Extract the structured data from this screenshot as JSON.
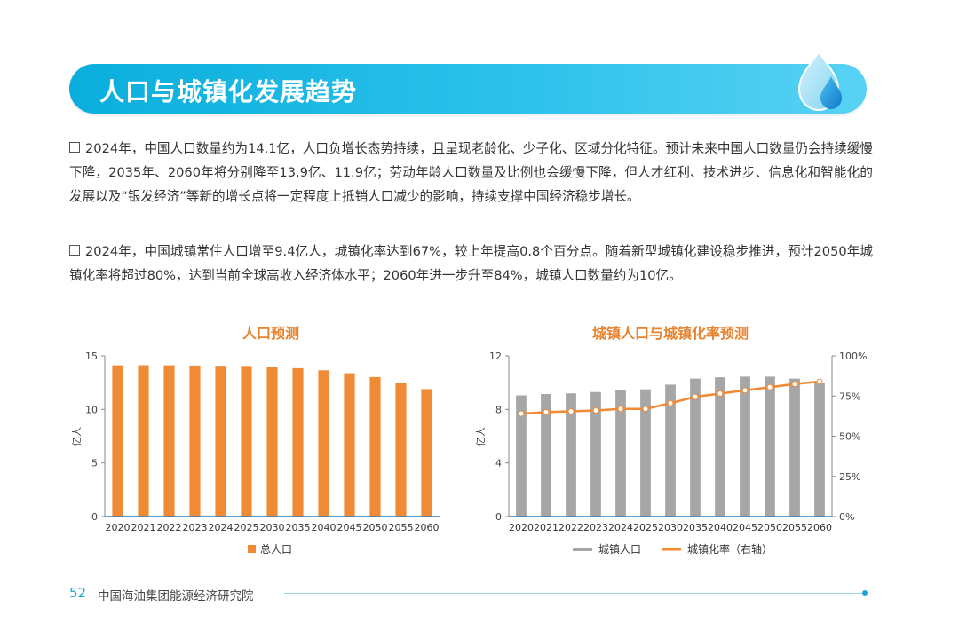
{
  "header": {
    "title": "人口与城镇化发展趋势"
  },
  "paragraphs": [
    "2024年，中国人口数量约为14.1亿，人口负增长态势持续，且呈现老龄化、少子化、区域分化特征。预计未来中国人口数量仍会持续缓慢下降，2035年、2060年将分别降至13.9亿、11.9亿；劳动年龄人口数量及比例也会缓慢下降，但人才红利、技术进步、信息化和智能化的发展以及“银发经济”等新的增长点将一定程度上抵销人口减少的影响，持续支撑中国经济稳步增长。",
    "2024年，中国城镇常住人口增至9.4亿人，城镇化率达到67%，较上年提高0.8个百分点。随着新型城镇化建设稳步推进，预计2050年城镇化率将超过80%，达到当前全球高收入经济体水平；2060年进一步升至84%，城镇人口数量约为10亿。"
  ],
  "colors": {
    "banner": "#1ab4e2",
    "orange": "#f08a35",
    "gray": "#a6a6a6",
    "axis_blue": "#2f7fc1"
  },
  "chart_data": [
    {
      "type": "bar",
      "title": "人口预测",
      "ylabel": "亿人",
      "ylim": [
        0,
        15
      ],
      "yticks": [
        "0",
        "5",
        "10",
        "15"
      ],
      "categories": [
        "2020",
        "2021",
        "2022",
        "2023",
        "2024",
        "2025",
        "2030",
        "2035",
        "2040",
        "2045",
        "2050",
        "2055",
        "2060"
      ],
      "series": [
        {
          "name": "总人口",
          "values": [
            14.12,
            14.13,
            14.12,
            14.1,
            14.08,
            14.06,
            13.98,
            13.85,
            13.65,
            13.38,
            13.02,
            12.5,
            11.9
          ]
        }
      ],
      "legend": "bottom"
    },
    {
      "type": "bar",
      "title": "城镇人口与城镇化率预测",
      "ylabel": "亿人",
      "ylim": [
        0,
        12
      ],
      "yticks": [
        "0",
        "4",
        "8",
        "12"
      ],
      "y2lim": [
        0,
        100
      ],
      "y2ticks": [
        "0%",
        "25%",
        "50%",
        "75%",
        "100%"
      ],
      "categories": [
        "2020",
        "2021",
        "2022",
        "2023",
        "2024",
        "2025",
        "2030",
        "2035",
        "2040",
        "2045",
        "2050",
        "2055",
        "2060"
      ],
      "series": [
        {
          "name": "城镇人口",
          "type": "bar",
          "values": [
            9.05,
            9.15,
            9.2,
            9.3,
            9.45,
            9.5,
            9.85,
            10.3,
            10.4,
            10.45,
            10.45,
            10.3,
            10.0
          ]
        },
        {
          "name": "城镇化率（右轴）",
          "type": "line",
          "axis": "right",
          "values": [
            64,
            65,
            65.5,
            66,
            67,
            67,
            70.5,
            74.5,
            76.5,
            78.5,
            80.5,
            82.5,
            84
          ]
        }
      ],
      "legend": "bottom"
    }
  ],
  "footer": {
    "page": "52",
    "org": "中国海油集团能源经济研究院"
  }
}
